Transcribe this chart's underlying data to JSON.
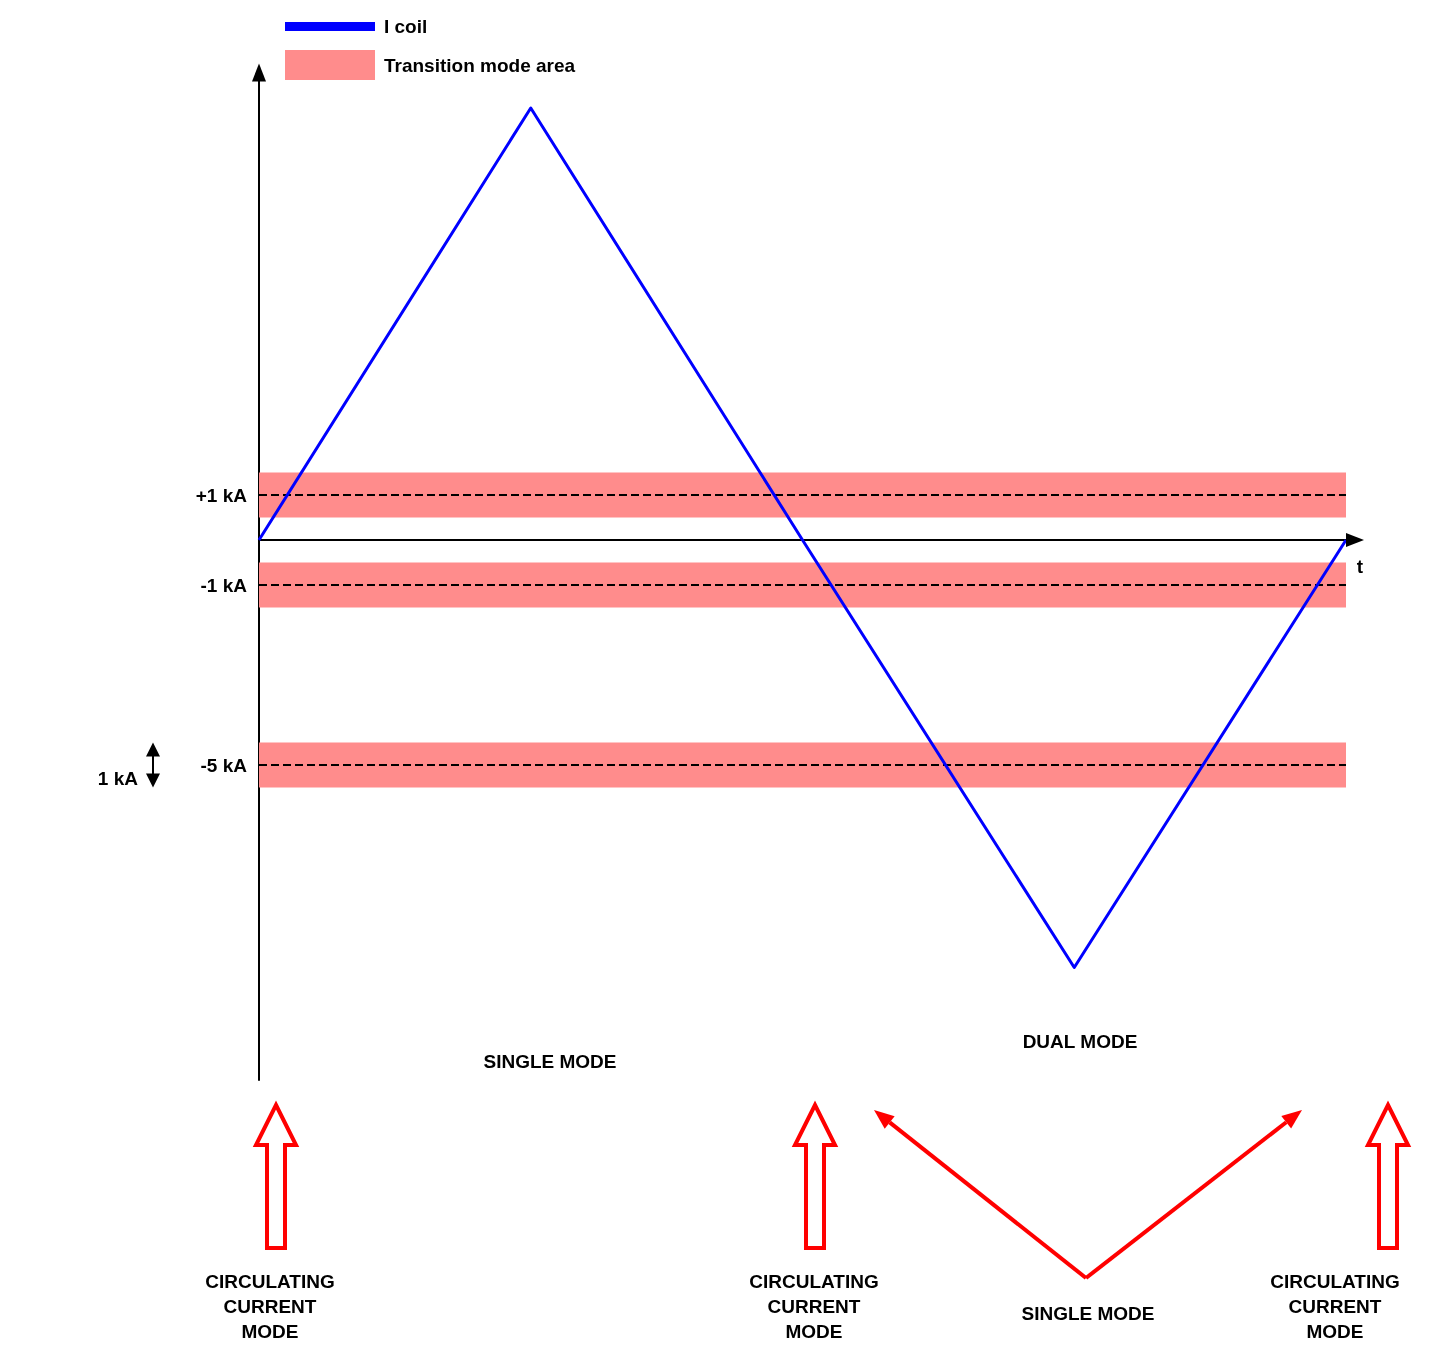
{
  "chart_data": {
    "type": "line",
    "categories": [
      null,
      null,
      null,
      null,
      null
    ],
    "series": [
      {
        "name": "I coil",
        "color": "#0000ff",
        "values": [
          0,
          9.6,
          0,
          -9.5,
          0
        ]
      }
    ],
    "ylim": [
      -12,
      10.5
    ],
    "yticks": [
      {
        "value": 1,
        "label": "+1 kA"
      },
      {
        "value": -1,
        "label": "-1 kA"
      },
      {
        "value": -5,
        "label": "-5 kA"
      }
    ],
    "ref_lines": [
      {
        "axis": "y",
        "value": 1,
        "color": "#000000",
        "line_style": "dashed"
      },
      {
        "axis": "y",
        "value": -1,
        "color": "#000000",
        "line_style": "dashed"
      },
      {
        "axis": "y",
        "value": -5,
        "color": "#000000",
        "line_style": "dashed"
      }
    ],
    "bands": [
      {
        "axis": "y",
        "from": 0.5,
        "to": 1.5,
        "label": "Transition mode area",
        "color": "#ff8c8c"
      },
      {
        "axis": "y",
        "from": -1.5,
        "to": -0.5,
        "color": "#ff8c8c"
      },
      {
        "axis": "y",
        "from": -5.5,
        "to": -4.5,
        "color": "#ff8c8c"
      }
    ],
    "annotations": [
      "t",
      "1 kA",
      "SINGLE MODE",
      "DUAL MODE",
      "CIRCULATING\nCURRENT\nMODE",
      "CIRCULATING\nCURRENT\nMODE",
      "SINGLE MODE",
      "CIRCULATING\nCURRENT\nMODE"
    ],
    "legend": "top left",
    "grid": false
  }
}
